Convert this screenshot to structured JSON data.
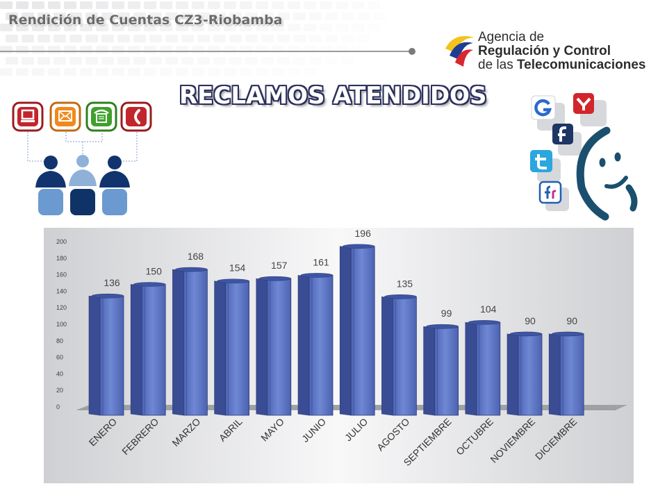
{
  "header": {
    "title": "Rendición de Cuentas CZ3-Riobamba"
  },
  "logo": {
    "line1": "Agencia de",
    "line2": "Regulación y Control",
    "line3_prefix": "de las ",
    "line3_bold": "Telecomunicaciones"
  },
  "main_title": "RECLAMOS ATENDIDOS",
  "icons": {
    "contact": [
      "computer-icon",
      "envelope-icon",
      "telephone-icon",
      "phone-handset-icon",
      "people-group-icon"
    ],
    "social": [
      "google-icon",
      "yahoo-icon",
      "facebook-icon",
      "twitter-icon",
      "flickr-icon",
      "face-icon"
    ]
  },
  "colors": {
    "bar": "#5a72c0",
    "bar_dark": "#3a4c94",
    "title_outline": "#2b2f5c"
  },
  "chart_data": {
    "type": "bar",
    "categories": [
      "ENERO",
      "FEBRERO",
      "MARZO",
      "ABRIL",
      "MAYO",
      "JUNIO",
      "JULIO",
      "AGOSTO",
      "SEPTIEMBRE",
      "OCTUBRE",
      "NOVIEMBRE",
      "DICIEMBRE"
    ],
    "values": [
      136,
      150,
      168,
      154,
      157,
      161,
      196,
      135,
      99,
      104,
      90,
      90
    ],
    "ylim": [
      0,
      200
    ],
    "yticks": [
      0,
      20,
      40,
      60,
      80,
      100,
      120,
      140,
      160,
      180,
      200
    ],
    "data_labels": true,
    "style": "3d-cylinder",
    "legend": "none",
    "grid": false
  }
}
